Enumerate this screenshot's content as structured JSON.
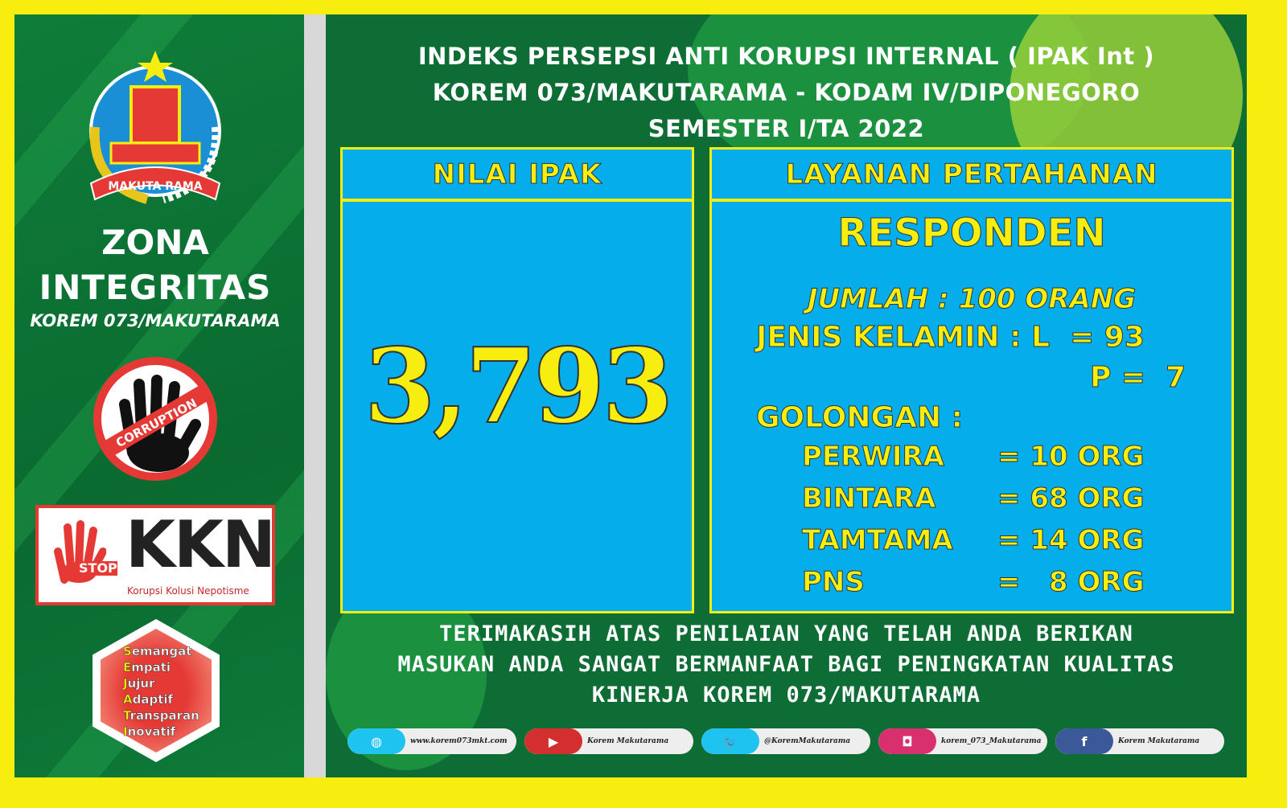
{
  "left": {
    "zona": "ZONA",
    "integritas": "INTEGRITAS",
    "unit": "KOREM 073/MAKUTARAMA",
    "emblem_text": "MAKUTA RAMA",
    "corruption": "CORRUPTION",
    "stop": "STOP",
    "kkn": "KKN",
    "kkn_sub": "Korupsi Kolusi Nepotisme",
    "sejati": [
      {
        "l": "S",
        "r": "emangat"
      },
      {
        "l": "E",
        "r": "mpati"
      },
      {
        "l": "J",
        "r": "ujur"
      },
      {
        "l": "A",
        "r": "daptif"
      },
      {
        "l": "T",
        "r": "ransparan"
      },
      {
        "l": "I",
        "r": "novatif"
      }
    ]
  },
  "title": [
    "INDEKS PERSEPSI ANTI KORUPSI INTERNAL ( IPAK Int )",
    "KOREM 073/MAKUTARAMA - KODAM IV/DIPONEGORO",
    "SEMESTER I/TA 2022"
  ],
  "ipak": {
    "header": "NILAI IPAK",
    "value": "3,793"
  },
  "layanan": {
    "header": "LAYANAN PERTAHANAN",
    "responden": "RESPONDEN",
    "jumlah": "JUMLAH : 100 ORANG",
    "jk": "JENIS KELAMIN : L  = 93",
    "p": "P =  7",
    "golongan": "GOLONGAN :",
    "rows": [
      {
        "n": "PERWIRA",
        "v": "= 10 ORG"
      },
      {
        "n": "BINTARA",
        "v": "= 68 ORG"
      },
      {
        "n": "TAMTAMA",
        "v": "= 14 ORG"
      },
      {
        "n": "PNS",
        "v": "=   8 ORG"
      }
    ]
  },
  "thanks": [
    "TERIMAKASIH ATAS PENILAIAN YANG TELAH ANDA BERIKAN",
    "MASUKAN ANDA SANGAT BERMANFAAT BAGI PENINGKATAN KUALITAS",
    "KINERJA KOREM 073/MAKUTARAMA"
  ],
  "social": [
    {
      "icon": "globe-icon",
      "glyph": "◍",
      "color": "#1ec3f0",
      "text": "www.korem073mkt.com"
    },
    {
      "icon": "youtube-icon",
      "glyph": "▶",
      "color": "#d32f2f",
      "text": "Korem Makutarama"
    },
    {
      "icon": "twitter-icon",
      "glyph": "🐦",
      "color": "#1ec3f0",
      "text": "@KoremMakutarama"
    },
    {
      "icon": "instagram-icon",
      "glyph": "◘",
      "color": "#d8306e",
      "text": "korem_073_Makutarama"
    },
    {
      "icon": "facebook-icon",
      "glyph": "f",
      "color": "#3b5998",
      "text": "Korem Makutarama"
    }
  ],
  "colors": {
    "border": "#f7ee10",
    "green": "#0d6d34",
    "blue": "#05aeea",
    "text_yellow": "#f7ee10"
  }
}
